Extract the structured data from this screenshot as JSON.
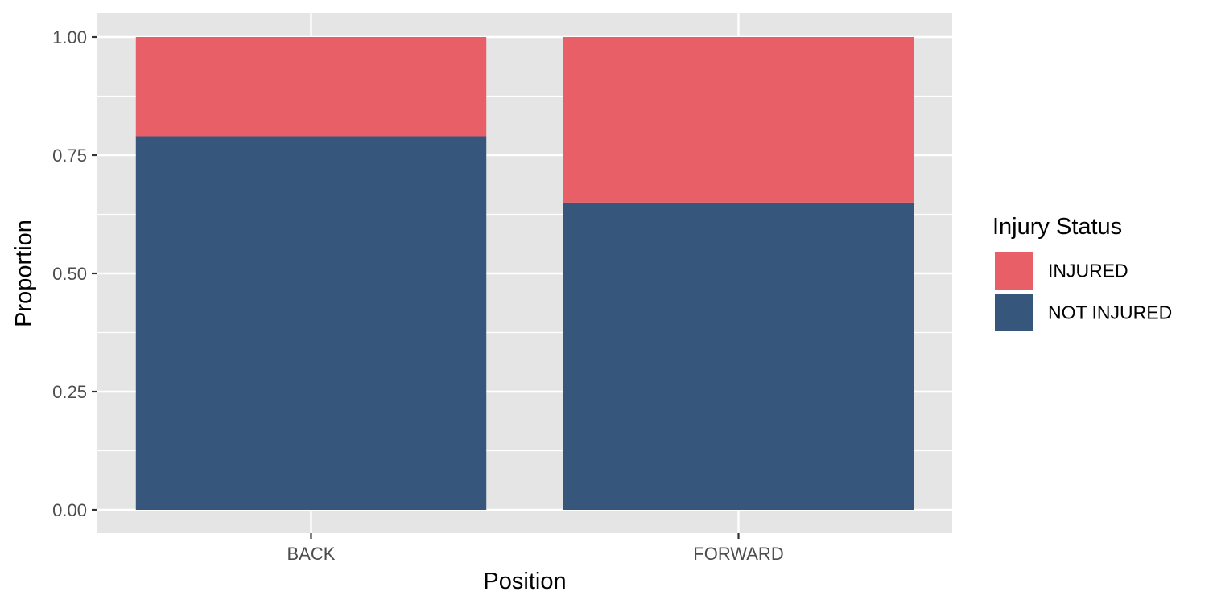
{
  "chart_data": {
    "type": "bar",
    "stacked": true,
    "xlabel": "Position",
    "ylabel": "Proportion",
    "categories": [
      "BACK",
      "FORWARD"
    ],
    "series": [
      {
        "name": "NOT INJURED",
        "values": [
          0.79,
          0.65
        ],
        "color": "#36567b"
      },
      {
        "name": "INJURED",
        "values": [
          0.21,
          0.35
        ],
        "color": "#e85f68"
      }
    ],
    "ylim": [
      0,
      1
    ],
    "y_ticks": [
      "0.00",
      "0.25",
      "0.50",
      "0.75",
      "1.00"
    ],
    "legend": {
      "title": "Injury Status",
      "position": "right",
      "entries": [
        {
          "label": "INJURED",
          "color": "#e85f68"
        },
        {
          "label": "NOT INJURED",
          "color": "#36567b"
        }
      ]
    },
    "grid": true,
    "panel_background": "#e5e5e5"
  }
}
